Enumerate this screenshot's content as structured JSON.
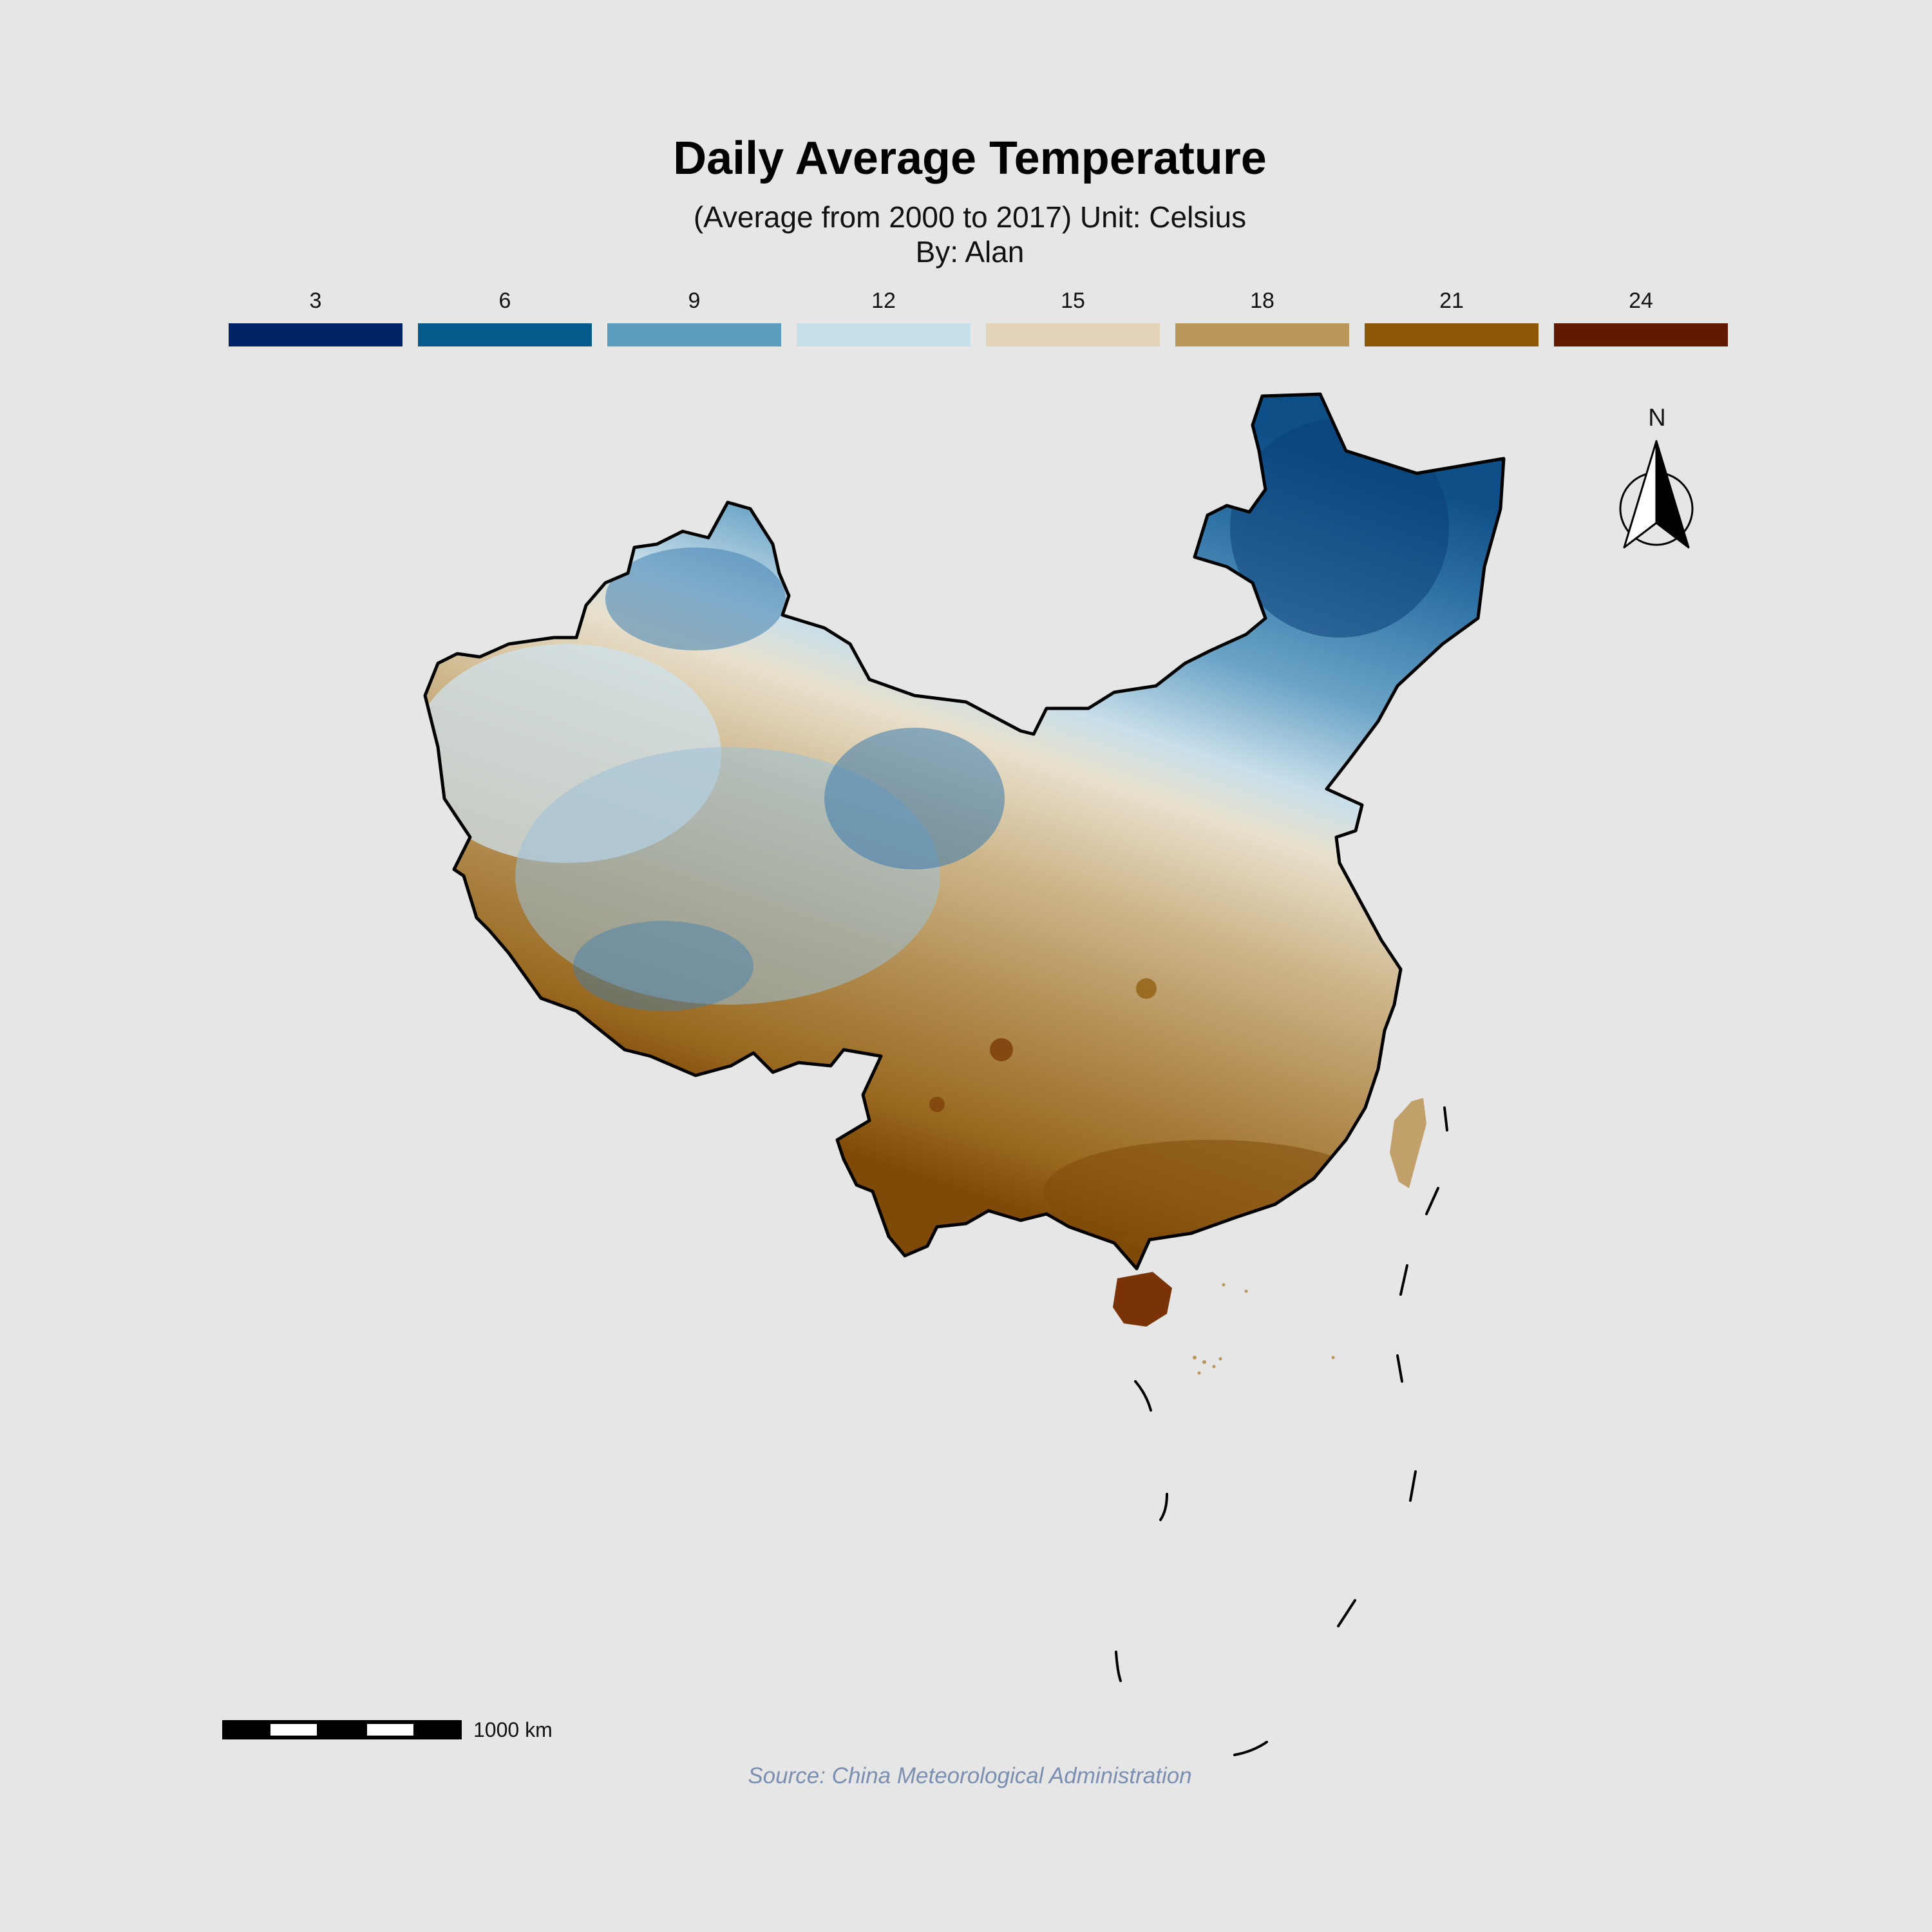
{
  "map": {
    "title": "Daily Average Temperature",
    "subtitle_line1": "(Average from 2000 to 2017) Unit: Celsius",
    "subtitle_line2": "By: Alan",
    "legend": [
      {
        "label": "3",
        "color": "#022266"
      },
      {
        "label": "6",
        "color": "#055a8c"
      },
      {
        "label": "9",
        "color": "#5c9cbf"
      },
      {
        "label": "12",
        "color": "#c7dfe8"
      },
      {
        "label": "15",
        "color": "#e3d3b8"
      },
      {
        "label": "18",
        "color": "#b9975b"
      },
      {
        "label": "21",
        "color": "#8c5706"
      },
      {
        "label": "24",
        "color": "#611a00"
      }
    ],
    "scale_bar_label": "1000 km",
    "north_arrow_label": "N",
    "source": "Source: China Meteorological Administration",
    "regions": {
      "northeast": "#1e5f96",
      "northwest": "#8ab7d1",
      "tibet": "#a6c8dc",
      "north_china_plain": "#e7dcc6",
      "southern": "#b38d4f",
      "south_coast": "#8c5a14",
      "hainan": "#7a3306",
      "taiwan": "#c2a069"
    }
  }
}
